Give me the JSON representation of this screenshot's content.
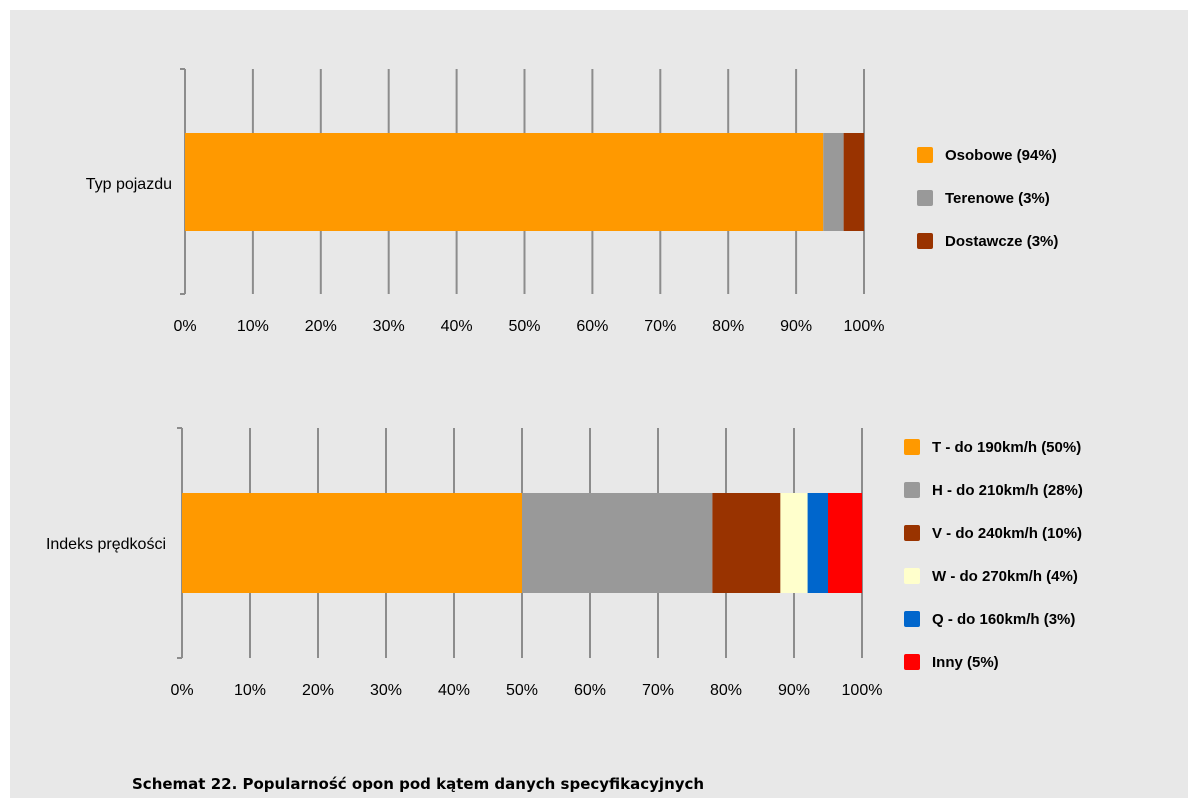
{
  "caption": "Schemat 22. Popularność opon pod kątem danych specyfikacyjnych",
  "chart_data": [
    {
      "type": "bar",
      "orientation": "horizontal",
      "stacked": true,
      "categories": [
        "Typ pojazdu"
      ],
      "series": [
        {
          "name": "Osobowe (94%)",
          "values": [
            94
          ],
          "color": "#ff9900"
        },
        {
          "name": "Terenowe (3%)",
          "values": [
            3
          ],
          "color": "#999999"
        },
        {
          "name": "Dostawcze (3%)",
          "values": [
            3
          ],
          "color": "#993300"
        }
      ],
      "xlim": [
        0,
        100
      ],
      "x_ticks": [
        "0%",
        "10%",
        "20%",
        "30%",
        "40%",
        "50%",
        "60%",
        "70%",
        "80%",
        "90%",
        "100%"
      ],
      "grid": "vertical",
      "legend": "right"
    },
    {
      "type": "bar",
      "orientation": "horizontal",
      "stacked": true,
      "categories": [
        "Indeks prędkości"
      ],
      "series": [
        {
          "name": "T - do 190km/h (50%)",
          "values": [
            50
          ],
          "color": "#ff9900"
        },
        {
          "name": "H - do 210km/h (28%)",
          "values": [
            28
          ],
          "color": "#999999"
        },
        {
          "name": "V - do 240km/h (10%)",
          "values": [
            10
          ],
          "color": "#993300"
        },
        {
          "name": "W - do 270km/h (4%)",
          "values": [
            4
          ],
          "color": "#ffffcc"
        },
        {
          "name": "Q - do 160km/h (3%)",
          "values": [
            3
          ],
          "color": "#0066cc"
        },
        {
          "name": "Inny (5%)",
          "values": [
            5
          ],
          "color": "#ff0000"
        }
      ],
      "xlim": [
        0,
        100
      ],
      "x_ticks": [
        "0%",
        "10%",
        "20%",
        "30%",
        "40%",
        "50%",
        "60%",
        "70%",
        "80%",
        "90%",
        "100%"
      ],
      "grid": "vertical",
      "legend": "right"
    }
  ]
}
